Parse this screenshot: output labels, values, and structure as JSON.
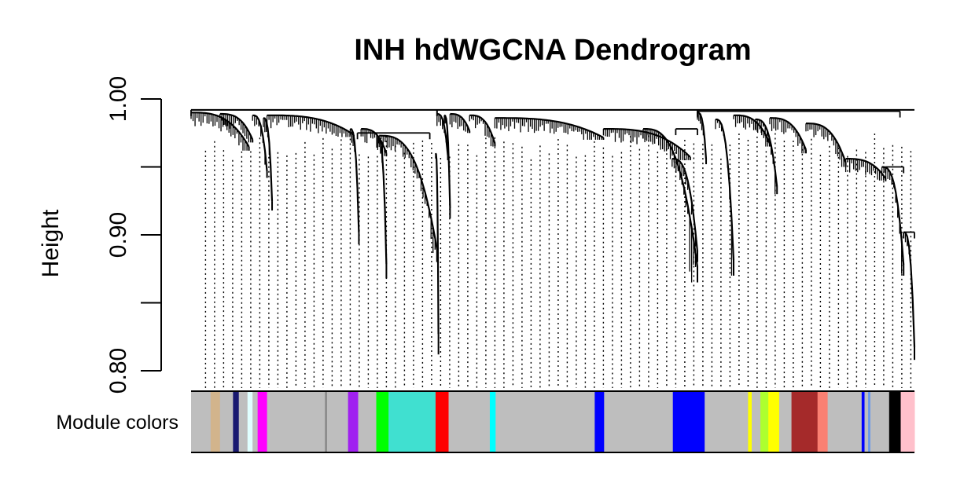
{
  "chart_data": {
    "type": "dendrogram",
    "title": "INH hdWGCNA Dendrogram",
    "ylabel": "Height",
    "ylim": [
      0.8,
      1.0
    ],
    "yticks": [
      {
        "value": 0.8,
        "label": "0.80"
      },
      {
        "value": 0.85,
        "label": ""
      },
      {
        "value": 0.9,
        "label": "0.90"
      },
      {
        "value": 0.95,
        "label": ""
      },
      {
        "value": 1.0,
        "label": "1.00"
      }
    ],
    "color_band_label": "Module colors",
    "grid": false,
    "legend": "none",
    "gene_fraction_range": [
      0,
      1
    ],
    "top_merge_height": 0.992,
    "clusters": [
      {
        "start": 0.0,
        "end": 0.08,
        "top": 0.99,
        "base": 0.962
      },
      {
        "start": 0.04,
        "end": 0.085,
        "top": 0.989,
        "base": 0.968
      },
      {
        "start": 0.085,
        "end": 0.105,
        "top": 0.988,
        "base": 0.942
      },
      {
        "start": 0.1,
        "end": 0.112,
        "top": 0.986,
        "base": 0.918
      },
      {
        "start": 0.105,
        "end": 0.225,
        "top": 0.988,
        "base": 0.972
      },
      {
        "start": 0.22,
        "end": 0.232,
        "top": 0.978,
        "base": 0.893
      },
      {
        "start": 0.235,
        "end": 0.27,
        "top": 0.978,
        "base": 0.958
      },
      {
        "start": 0.258,
        "end": 0.27,
        "top": 0.972,
        "base": 0.868
      },
      {
        "start": 0.26,
        "end": 0.34,
        "top": 0.973,
        "base": 0.88
      },
      {
        "start": 0.338,
        "end": 0.342,
        "top": 0.96,
        "base": 0.812
      },
      {
        "start": 0.34,
        "end": 0.355,
        "top": 0.989,
        "base": 0.955
      },
      {
        "start": 0.35,
        "end": 0.358,
        "top": 0.988,
        "base": 0.912
      },
      {
        "start": 0.358,
        "end": 0.385,
        "top": 0.989,
        "base": 0.975
      },
      {
        "start": 0.385,
        "end": 0.42,
        "top": 0.988,
        "base": 0.965
      },
      {
        "start": 0.42,
        "end": 0.57,
        "top": 0.986,
        "base": 0.97
      },
      {
        "start": 0.57,
        "end": 0.69,
        "top": 0.978,
        "base": 0.955
      },
      {
        "start": 0.625,
        "end": 0.7,
        "top": 0.978,
        "base": 0.865
      },
      {
        "start": 0.665,
        "end": 0.7,
        "top": 0.956,
        "base": 0.88
      },
      {
        "start": 0.7,
        "end": 0.712,
        "top": 0.99,
        "base": 0.952
      },
      {
        "start": 0.725,
        "end": 0.75,
        "top": 0.985,
        "base": 0.87
      },
      {
        "start": 0.75,
        "end": 0.8,
        "top": 0.988,
        "base": 0.965
      },
      {
        "start": 0.78,
        "end": 0.81,
        "top": 0.985,
        "base": 0.93
      },
      {
        "start": 0.8,
        "end": 0.85,
        "top": 0.986,
        "base": 0.96
      },
      {
        "start": 0.85,
        "end": 0.905,
        "top": 0.982,
        "base": 0.95
      },
      {
        "start": 0.905,
        "end": 0.96,
        "top": 0.956,
        "base": 0.94
      },
      {
        "start": 0.955,
        "end": 0.985,
        "top": 0.95,
        "base": 0.87
      },
      {
        "start": 0.985,
        "end": 1.0,
        "top": 0.902,
        "base": 0.808
      }
    ],
    "merges": [
      {
        "left": 0.0,
        "right": 0.34,
        "height": 0.992
      },
      {
        "left": 0.23,
        "right": 0.33,
        "height": 0.975
      },
      {
        "left": 0.34,
        "right": 0.7,
        "height": 0.992
      },
      {
        "left": 0.7,
        "right": 0.98,
        "height": 0.991
      },
      {
        "left": 0.67,
        "right": 0.7,
        "height": 0.978
      },
      {
        "left": 0.96,
        "right": 0.985,
        "height": 0.95
      },
      {
        "left": 0.985,
        "right": 1.0,
        "height": 0.902
      }
    ],
    "module_colors": [
      {
        "start": 0.0,
        "end": 0.027,
        "color": "#BEBEBE"
      },
      {
        "start": 0.027,
        "end": 0.04,
        "color": "#D2B48C"
      },
      {
        "start": 0.04,
        "end": 0.058,
        "color": "#BEBEBE"
      },
      {
        "start": 0.058,
        "end": 0.066,
        "color": "#191970"
      },
      {
        "start": 0.066,
        "end": 0.078,
        "color": "#BEBEBE"
      },
      {
        "start": 0.078,
        "end": 0.085,
        "color": "#E0FFFF"
      },
      {
        "start": 0.085,
        "end": 0.092,
        "color": "#BEBEBE"
      },
      {
        "start": 0.092,
        "end": 0.105,
        "color": "#FF00FF"
      },
      {
        "start": 0.105,
        "end": 0.185,
        "color": "#BEBEBE"
      },
      {
        "start": 0.185,
        "end": 0.188,
        "color": "#8C8C8C"
      },
      {
        "start": 0.188,
        "end": 0.217,
        "color": "#BEBEBE"
      },
      {
        "start": 0.217,
        "end": 0.231,
        "color": "#A020F0"
      },
      {
        "start": 0.231,
        "end": 0.256,
        "color": "#BEBEBE"
      },
      {
        "start": 0.256,
        "end": 0.273,
        "color": "#00FF00"
      },
      {
        "start": 0.273,
        "end": 0.338,
        "color": "#40E0D0"
      },
      {
        "start": 0.338,
        "end": 0.356,
        "color": "#FF0000"
      },
      {
        "start": 0.356,
        "end": 0.413,
        "color": "#BEBEBE"
      },
      {
        "start": 0.413,
        "end": 0.421,
        "color": "#00FFFF"
      },
      {
        "start": 0.421,
        "end": 0.558,
        "color": "#BEBEBE"
      },
      {
        "start": 0.558,
        "end": 0.571,
        "color": "#0000FF"
      },
      {
        "start": 0.571,
        "end": 0.666,
        "color": "#BEBEBE"
      },
      {
        "start": 0.666,
        "end": 0.71,
        "color": "#0000FF"
      },
      {
        "start": 0.71,
        "end": 0.77,
        "color": "#BEBEBE"
      },
      {
        "start": 0.77,
        "end": 0.775,
        "color": "#FFFF00"
      },
      {
        "start": 0.775,
        "end": 0.787,
        "color": "#BEBEBE"
      },
      {
        "start": 0.787,
        "end": 0.798,
        "color": "#ADFF2F"
      },
      {
        "start": 0.798,
        "end": 0.813,
        "color": "#FFFF00"
      },
      {
        "start": 0.813,
        "end": 0.83,
        "color": "#BEBEBE"
      },
      {
        "start": 0.83,
        "end": 0.866,
        "color": "#A52A2A"
      },
      {
        "start": 0.866,
        "end": 0.88,
        "color": "#FA8072"
      },
      {
        "start": 0.88,
        "end": 0.927,
        "color": "#BEBEBE"
      },
      {
        "start": 0.927,
        "end": 0.931,
        "color": "#0000FF"
      },
      {
        "start": 0.931,
        "end": 0.936,
        "color": "#BEBEBE"
      },
      {
        "start": 0.936,
        "end": 0.939,
        "color": "#6495ED"
      },
      {
        "start": 0.939,
        "end": 0.965,
        "color": "#BEBEBE"
      },
      {
        "start": 0.965,
        "end": 0.981,
        "color": "#000000"
      },
      {
        "start": 0.981,
        "end": 1.0,
        "color": "#FFC0CB"
      }
    ]
  }
}
